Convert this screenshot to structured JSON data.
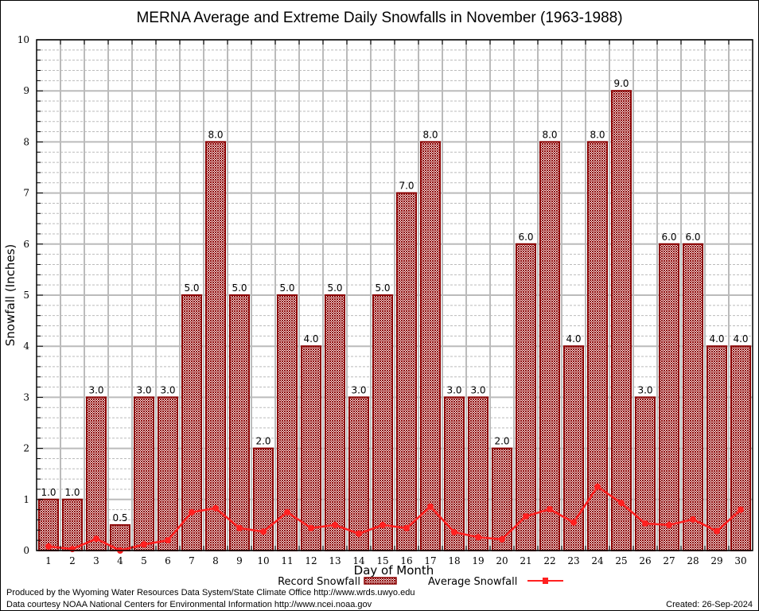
{
  "chart_data": {
    "type": "bar",
    "title": "MERNA Average and Extreme Daily Snowfalls in November (1963-1988)",
    "xlabel": "Day of Month",
    "ylabel": "Snowfall (Inches)",
    "ylim": [
      0,
      10
    ],
    "yticks": [
      "0",
      "1",
      "2",
      "3",
      "4",
      "5",
      "6",
      "7",
      "8",
      "9",
      "10"
    ],
    "grid": true,
    "categories": [
      "1",
      "2",
      "3",
      "4",
      "5",
      "6",
      "7",
      "8",
      "9",
      "10",
      "11",
      "12",
      "13",
      "14",
      "15",
      "16",
      "17",
      "18",
      "19",
      "20",
      "21",
      "22",
      "23",
      "24",
      "25",
      "26",
      "27",
      "28",
      "29",
      "30"
    ],
    "series": [
      {
        "name": "Record Snowfall",
        "kind": "bar",
        "color": "#8b0000",
        "values": [
          1.0,
          1.0,
          3.0,
          0.5,
          3.0,
          3.0,
          5.0,
          8.0,
          5.0,
          2.0,
          5.0,
          4.0,
          5.0,
          3.0,
          5.0,
          7.0,
          8.0,
          3.0,
          3.0,
          2.0,
          6.0,
          8.0,
          4.0,
          8.0,
          9.0,
          3.0,
          6.0,
          6.0,
          4.0,
          4.0
        ],
        "labels": [
          "1.0",
          "1.0",
          "3.0",
          "0.5",
          "3.0",
          "3.0",
          "5.0",
          "8.0",
          "5.0",
          "2.0",
          "5.0",
          "4.0",
          "5.0",
          "3.0",
          "5.0",
          "7.0",
          "8.0",
          "3.0",
          "3.0",
          "2.0",
          "6.0",
          "8.0",
          "4.0",
          "8.0",
          "9.0",
          "3.0",
          "6.0",
          "6.0",
          "4.0",
          "4.0"
        ]
      },
      {
        "name": "Average Snowfall",
        "kind": "line",
        "color": "#ff2020",
        "values": [
          0.08,
          0.03,
          0.23,
          0.0,
          0.12,
          0.2,
          0.75,
          0.83,
          0.44,
          0.37,
          0.75,
          0.44,
          0.5,
          0.33,
          0.5,
          0.44,
          0.86,
          0.36,
          0.26,
          0.22,
          0.67,
          0.81,
          0.55,
          1.25,
          0.93,
          0.53,
          0.5,
          0.61,
          0.38,
          0.8
        ]
      }
    ],
    "legend": {
      "placement": "bottom-center",
      "items": [
        "Record Snowfall",
        "Average Snowfall"
      ]
    }
  },
  "footer": {
    "produced_by": "Produced by the Wyoming Water Resources Data System/State Climate Office http://www.wrds.uwyo.edu",
    "data_courtesy": "Data courtesy NOAA National Centers for Environmental Information http://www.ncei.noaa.gov",
    "created": "Created: 26-Sep-2024"
  }
}
